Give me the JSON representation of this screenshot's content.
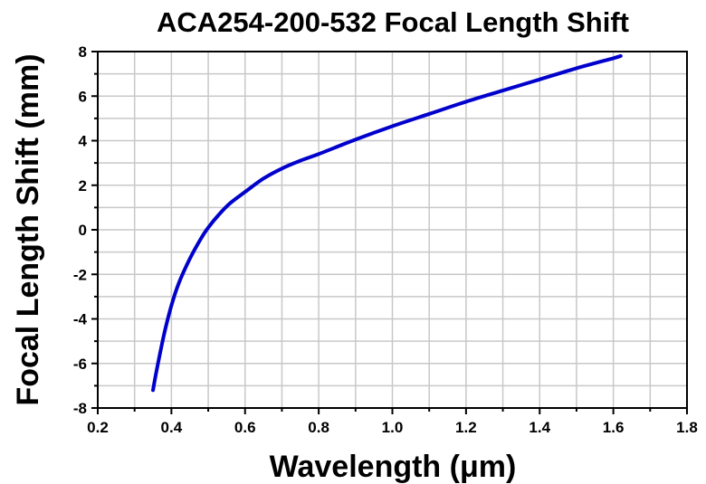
{
  "chart_data": {
    "type": "line",
    "title": "ACA254-200-532 Focal Length Shift",
    "xlabel": "Wavelength (μm)",
    "ylabel": "Focal Length Shift (mm)",
    "xlim": [
      0.2,
      1.8
    ],
    "ylim": [
      -8,
      8
    ],
    "x_ticks": [
      "0.2",
      "0.4",
      "0.6",
      "0.8",
      "1.0",
      "1.2",
      "1.4",
      "1.6",
      "1.8"
    ],
    "y_ticks": [
      "-8",
      "-6",
      "-4",
      "-2",
      "0",
      "2",
      "4",
      "6",
      "8"
    ],
    "grid": true,
    "legend": "none",
    "series": [
      {
        "color": "#0000cc",
        "x": [
          0.35,
          0.36,
          0.38,
          0.4,
          0.42,
          0.45,
          0.48,
          0.5,
          0.53,
          0.56,
          0.6,
          0.65,
          0.7,
          0.75,
          0.8,
          0.9,
          1.0,
          1.1,
          1.2,
          1.3,
          1.4,
          1.5,
          1.6,
          1.62
        ],
        "y": [
          -7.2,
          -6.3,
          -4.7,
          -3.4,
          -2.4,
          -1.3,
          -0.4,
          0.1,
          0.7,
          1.2,
          1.7,
          2.3,
          2.75,
          3.1,
          3.4,
          4.05,
          4.65,
          5.2,
          5.75,
          6.25,
          6.75,
          7.25,
          7.7,
          7.8
        ]
      }
    ]
  }
}
